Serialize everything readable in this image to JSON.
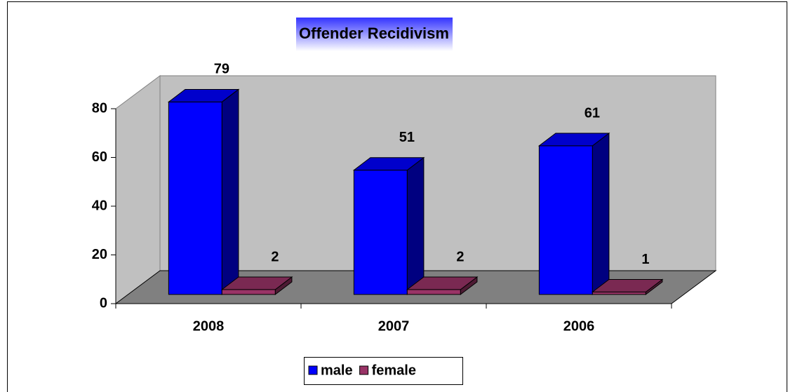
{
  "chart_data": {
    "type": "bar3d",
    "title": "Offender Recidivism",
    "categories": [
      "2008",
      "2007",
      "2006"
    ],
    "series": [
      {
        "name": "male",
        "color": "#0000ff",
        "values": [
          79,
          51,
          61
        ]
      },
      {
        "name": "female",
        "color": "#993366",
        "values": [
          2,
          2,
          1
        ]
      }
    ],
    "ylim": [
      0,
      80
    ],
    "yticks": [
      0,
      20,
      40,
      60,
      80
    ],
    "legend": "bottom"
  }
}
